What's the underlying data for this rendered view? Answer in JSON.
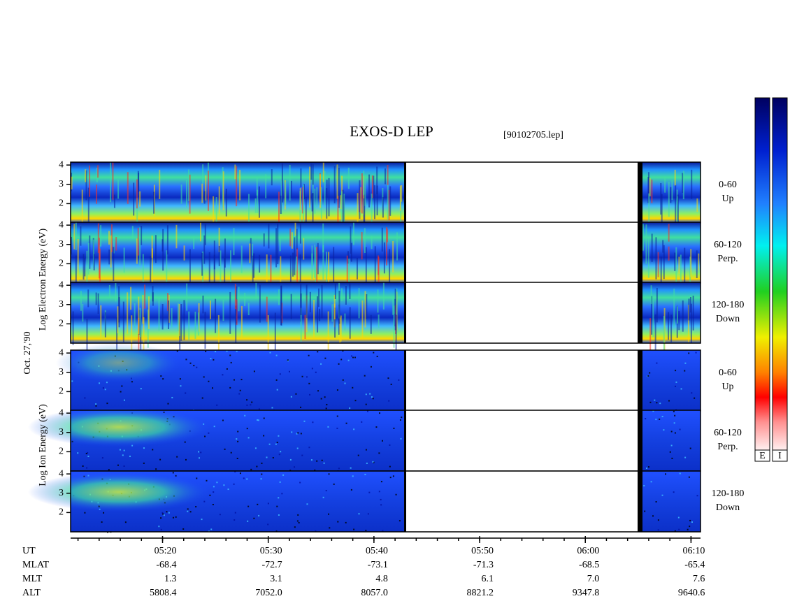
{
  "header": {
    "title": "EXOS-D LEP",
    "file": "[90102705.lep]"
  },
  "date": "Oct. 27,'90",
  "groups": [
    {
      "label": "Log  Electron  Energy (eV)",
      "ylim": [
        1,
        4.15
      ],
      "yticks": [
        2,
        3,
        4
      ],
      "panels": [
        {
          "angle": [
            "0-60",
            "Up"
          ]
        },
        {
          "angle": [
            "60-120",
            "Perp."
          ]
        },
        {
          "angle": [
            "120-180",
            "Down"
          ]
        }
      ]
    },
    {
      "label": "Log  Ion  Energy (eV)",
      "ylim": [
        1,
        4.15
      ],
      "yticks": [
        2,
        3,
        4
      ],
      "panels": [
        {
          "angle": [
            "0-60",
            "Up"
          ]
        },
        {
          "angle": [
            "60-120",
            "Perp."
          ]
        },
        {
          "angle": [
            "120-180",
            "Down"
          ]
        }
      ]
    }
  ],
  "time_axis": {
    "xlim": [
      311.3,
      370.9
    ],
    "xticks": [
      {
        "value": 320,
        "label": "05:20"
      },
      {
        "value": 330,
        "label": "05:30"
      },
      {
        "value": 340,
        "label": "05:40"
      },
      {
        "value": 350,
        "label": "05:50"
      },
      {
        "value": 360,
        "label": "06:00"
      },
      {
        "value": 370,
        "label": "06:10"
      }
    ],
    "row_head": "UT",
    "rows": [
      {
        "name": "MLAT",
        "values": [
          "-68.4",
          "-72.7",
          "-73.1",
          "-71.3",
          "-68.5",
          "-65.4"
        ]
      },
      {
        "name": "MLT",
        "values": [
          "1.3",
          "3.1",
          "4.8",
          "6.1",
          "7.0",
          "7.6"
        ]
      },
      {
        "name": "ALT",
        "values": [
          "5808.4",
          "7052.0",
          "8057.0",
          "8821.2",
          "9347.8",
          "9640.6"
        ]
      }
    ]
  },
  "colorbars": [
    "E",
    "I"
  ]
}
